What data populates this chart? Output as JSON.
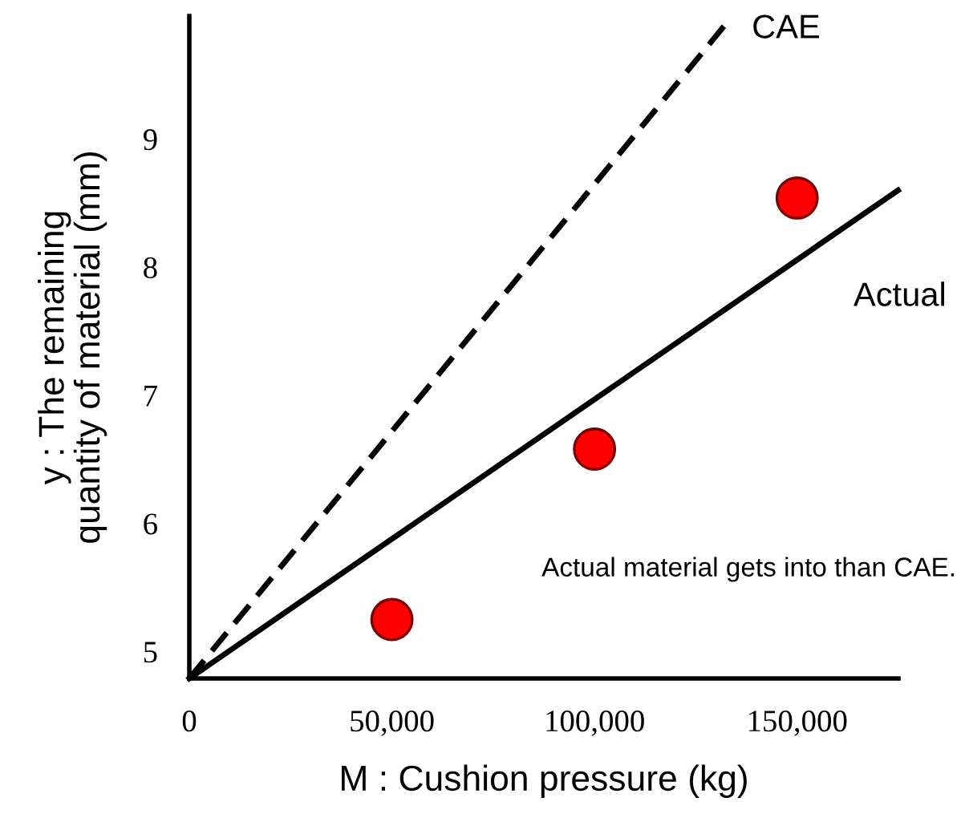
{
  "chart_data": {
    "type": "line",
    "xlabel": "M : Cushion pressure (kg)",
    "ylabel": "y : The remaining\nquantity of material (mm)",
    "xlim": [
      0,
      175000
    ],
    "ylim": [
      4.79,
      9.96
    ],
    "xticks": [
      0,
      {
        "value": 50000,
        "label": "50,000"
      },
      {
        "value": 100000,
        "label": "100,000"
      },
      {
        "value": 150000,
        "label": "150,000"
      }
    ],
    "yticks": [
      5,
      6,
      7,
      8,
      9
    ],
    "series": [
      {
        "name": "CAE",
        "color": "#000000",
        "line_style": "dashed",
        "x": [
          0,
          132200
        ],
        "values": [
          4.79,
          9.89
        ]
      },
      {
        "name": "Actual",
        "color": "#000000",
        "line_style": "solid",
        "x": [
          0,
          174900
        ],
        "values": [
          4.79,
          8.6
        ]
      },
      {
        "type": "scatter",
        "color": "#ff0000",
        "marker": "circle",
        "x": [
          50000,
          100000,
          150000
        ],
        "values": [
          5.25,
          6.58,
          8.54
        ]
      }
    ],
    "annotations": [
      "Actual material gets into than CAE."
    ],
    "grid": false,
    "legend": false
  }
}
